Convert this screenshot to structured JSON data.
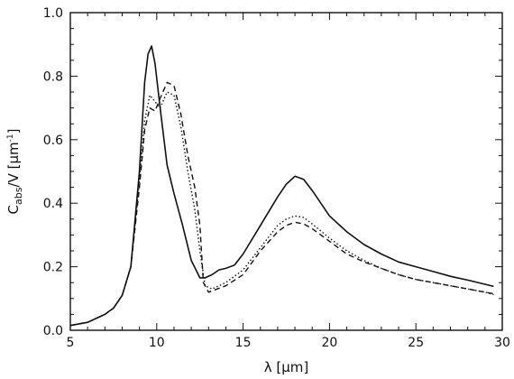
{
  "chart_data": {
    "type": "line",
    "title": "",
    "xlabel": "λ [μm]",
    "ylabel": {
      "main": "C",
      "subscript": "abs",
      "suffix": "/V [μm",
      "superscript": "-1",
      "close": "]"
    },
    "xlim": [
      5,
      30
    ],
    "ylim": [
      0,
      1.0
    ],
    "xticks": [
      5,
      10,
      15,
      20,
      25,
      30
    ],
    "yticks": [
      0.0,
      0.2,
      0.4,
      0.6,
      0.8,
      1.0
    ],
    "xtick_labels": [
      "5",
      "10",
      "15",
      "20",
      "25",
      "30"
    ],
    "ytick_labels": [
      "0.0",
      "0.2",
      "0.4",
      "0.6",
      "0.8",
      "1.0"
    ],
    "grid": false,
    "legend": "none",
    "series": [
      {
        "style": "solid",
        "x": [
          5,
          6,
          7,
          7.5,
          8,
          8.5,
          9,
          9.3,
          9.5,
          9.7,
          9.9,
          10.2,
          10.6,
          11.0,
          11.5,
          12.0,
          12.5,
          12.8,
          13.2,
          13.6,
          14.0,
          14.5,
          15,
          16,
          17,
          17.5,
          18,
          18.5,
          19,
          20,
          21,
          22,
          23,
          24,
          25,
          26,
          27,
          28,
          29,
          29.5
        ],
        "y": [
          0.015,
          0.025,
          0.05,
          0.07,
          0.11,
          0.2,
          0.5,
          0.78,
          0.87,
          0.895,
          0.84,
          0.7,
          0.52,
          0.43,
          0.33,
          0.22,
          0.165,
          0.165,
          0.175,
          0.19,
          0.195,
          0.205,
          0.24,
          0.33,
          0.42,
          0.46,
          0.485,
          0.475,
          0.44,
          0.36,
          0.31,
          0.27,
          0.24,
          0.215,
          0.2,
          0.185,
          0.17,
          0.158,
          0.145,
          0.138
        ]
      },
      {
        "style": "dashed",
        "x": [
          5,
          6,
          7,
          7.5,
          8,
          8.5,
          9,
          9.3,
          9.6,
          9.9,
          10.2,
          10.6,
          11.0,
          11.4,
          11.8,
          12.2,
          12.5,
          12.7,
          13.0,
          13.5,
          14.0,
          15,
          16,
          17,
          17.5,
          18,
          18.5,
          19,
          20,
          21,
          22,
          23,
          24,
          25,
          26,
          27,
          28,
          29,
          29.5
        ],
        "y": [
          0.015,
          0.025,
          0.05,
          0.07,
          0.11,
          0.2,
          0.45,
          0.63,
          0.7,
          0.69,
          0.73,
          0.78,
          0.77,
          0.68,
          0.55,
          0.45,
          0.33,
          0.15,
          0.12,
          0.13,
          0.14,
          0.175,
          0.25,
          0.31,
          0.33,
          0.34,
          0.335,
          0.32,
          0.28,
          0.24,
          0.215,
          0.195,
          0.175,
          0.16,
          0.15,
          0.14,
          0.13,
          0.12,
          0.115
        ]
      },
      {
        "style": "dotted",
        "x": [
          5,
          6,
          7,
          7.5,
          8,
          8.5,
          9,
          9.3,
          9.6,
          9.9,
          10.2,
          10.6,
          11.0,
          11.4,
          11.8,
          12.2,
          12.5,
          12.8,
          13.2,
          13.6,
          14.0,
          15,
          16,
          17,
          17.5,
          18,
          18.5,
          19,
          20,
          21,
          22,
          23,
          24,
          25,
          26,
          27,
          28,
          29,
          29.5
        ],
        "y": [
          0.015,
          0.025,
          0.05,
          0.07,
          0.11,
          0.2,
          0.47,
          0.66,
          0.74,
          0.72,
          0.7,
          0.75,
          0.74,
          0.64,
          0.5,
          0.38,
          0.25,
          0.14,
          0.13,
          0.14,
          0.15,
          0.19,
          0.26,
          0.33,
          0.35,
          0.36,
          0.355,
          0.335,
          0.29,
          0.25,
          0.22,
          0.195,
          0.175,
          0.16,
          0.15,
          0.14,
          0.13,
          0.12,
          0.112
        ]
      }
    ]
  }
}
